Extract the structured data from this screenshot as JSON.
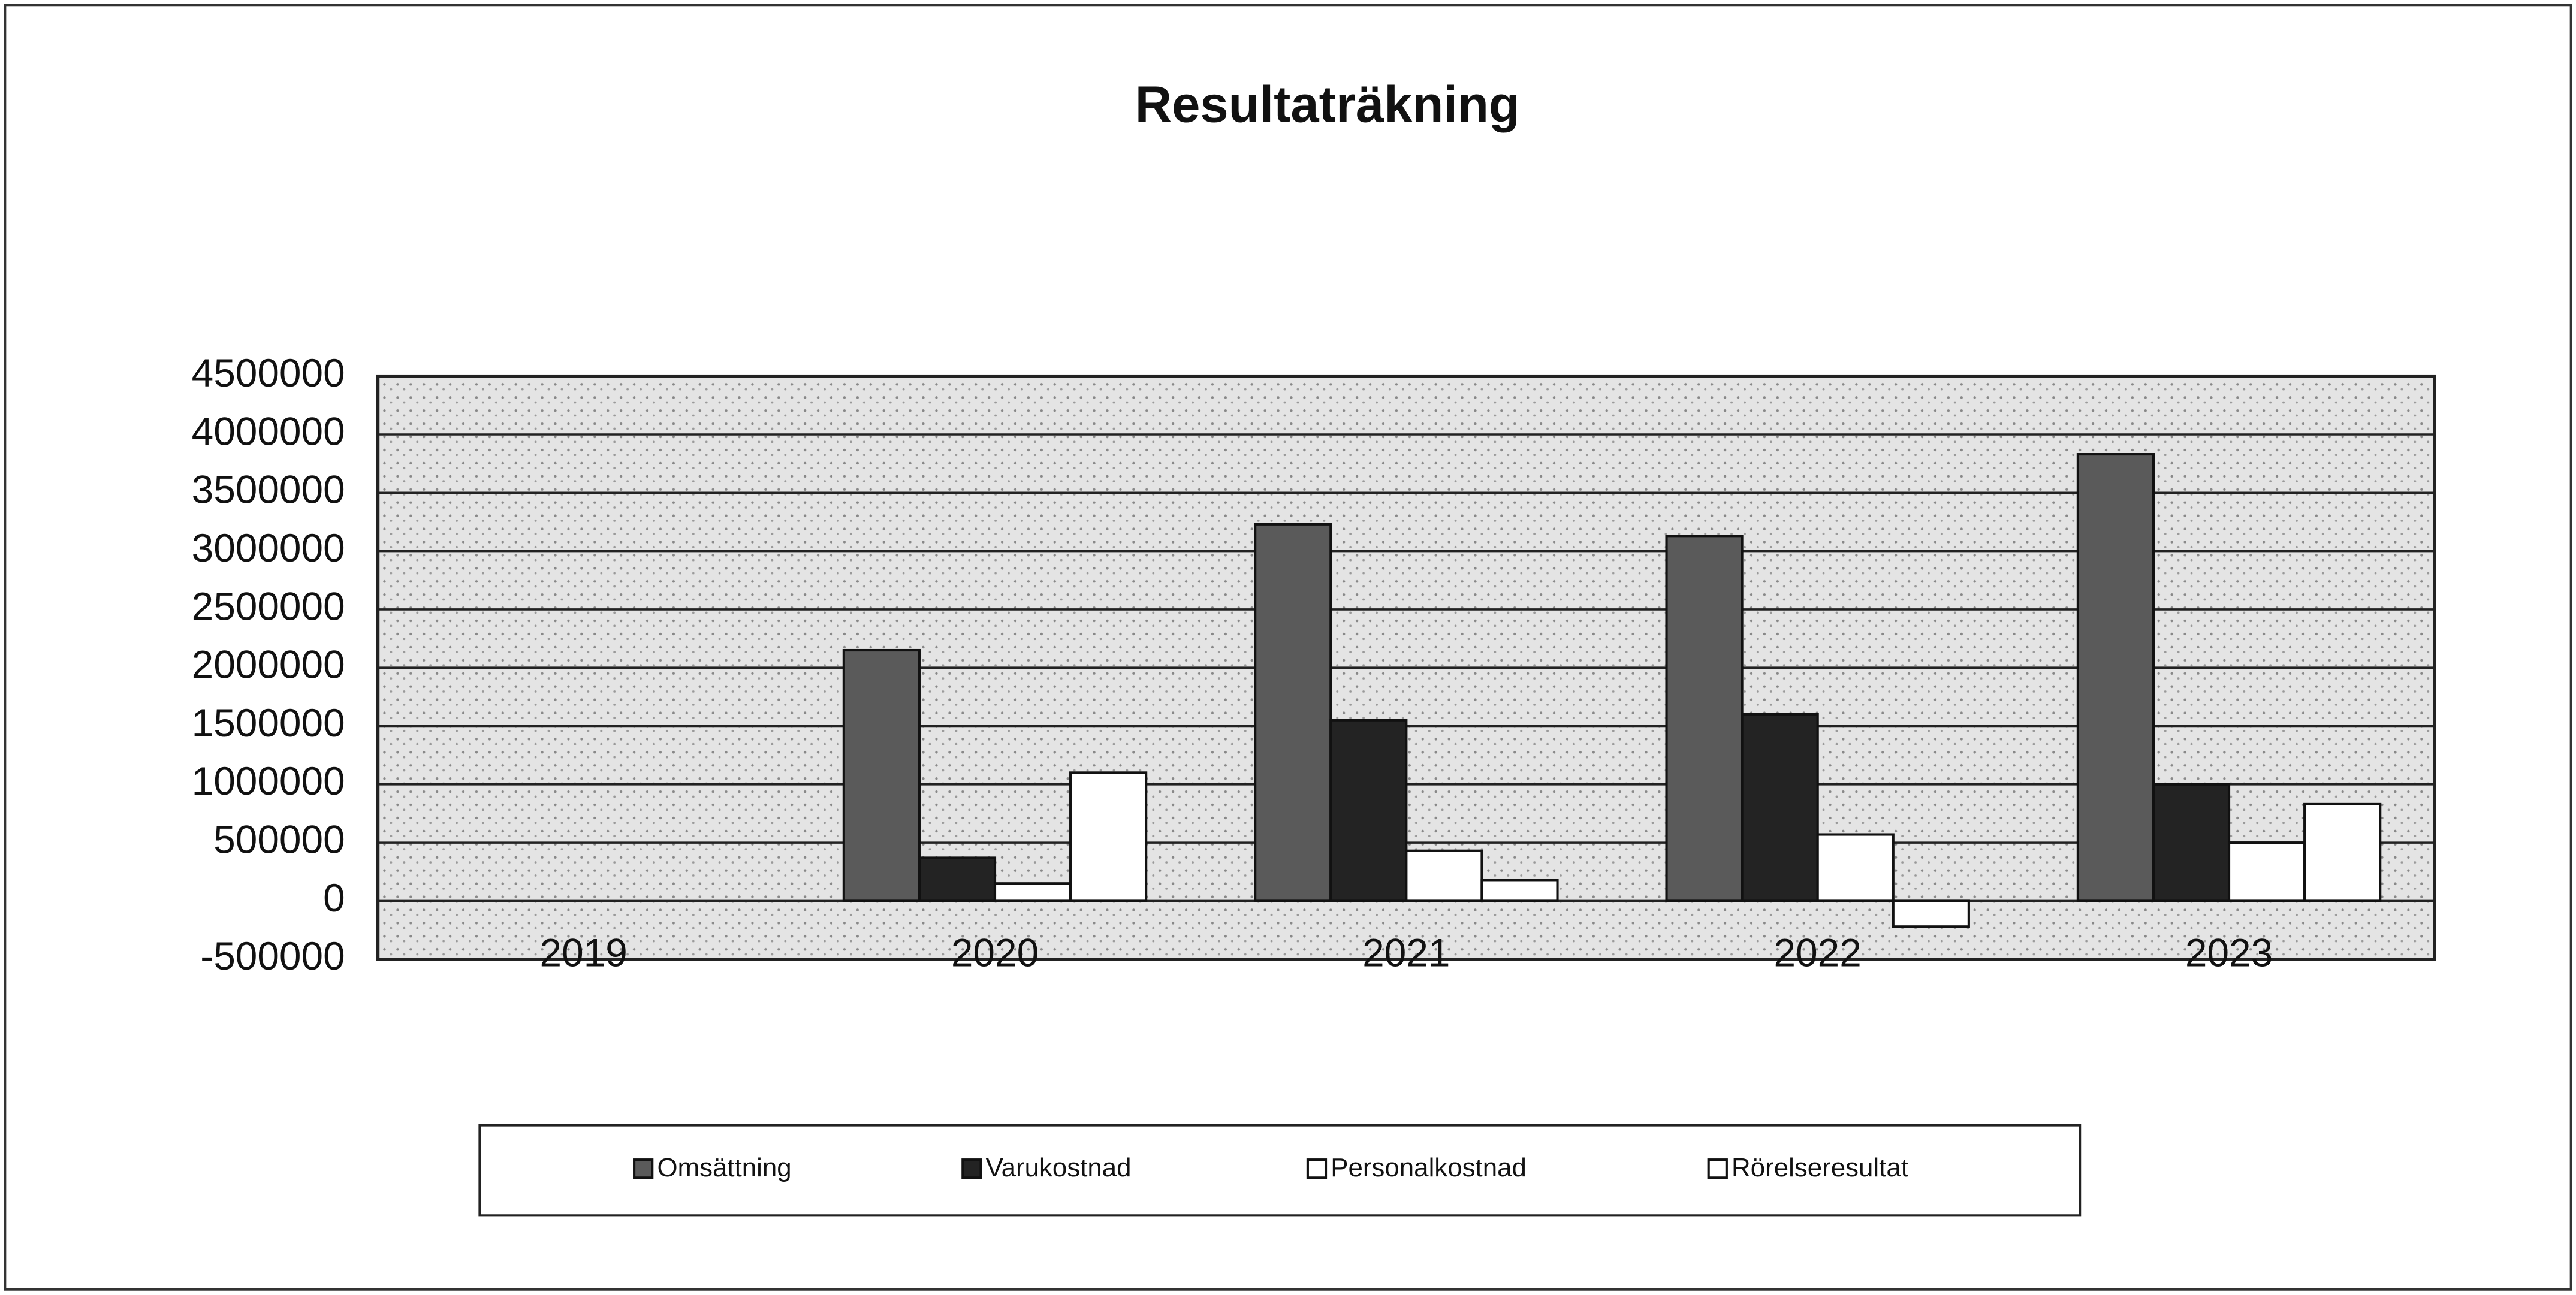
{
  "chart_data": {
    "type": "bar",
    "title": "Resultaträkning",
    "categories": [
      "2019",
      "2020",
      "2021",
      "2022",
      "2023"
    ],
    "series": [
      {
        "name": "Omsättning",
        "color": "#5a5a5a",
        "values": [
          0,
          2150000,
          3230000,
          3130000,
          3830000
        ]
      },
      {
        "name": "Varukostnad",
        "color": "#232323",
        "values": [
          0,
          370000,
          1550000,
          1600000,
          1000000
        ]
      },
      {
        "name": "Personalkostnad",
        "color": "#ffffff",
        "values": [
          0,
          150000,
          430000,
          570000,
          500000
        ]
      },
      {
        "name": "Rörelseresultat",
        "color": "#ffffff",
        "values": [
          0,
          1100000,
          180000,
          -220000,
          830000
        ]
      }
    ],
    "ylim": [
      -500000,
      4500000
    ],
    "yticks": [
      -500000,
      0,
      500000,
      1000000,
      1500000,
      2000000,
      2500000,
      3000000,
      3500000,
      4000000,
      4500000
    ],
    "grid": true,
    "legend": "bottom"
  }
}
